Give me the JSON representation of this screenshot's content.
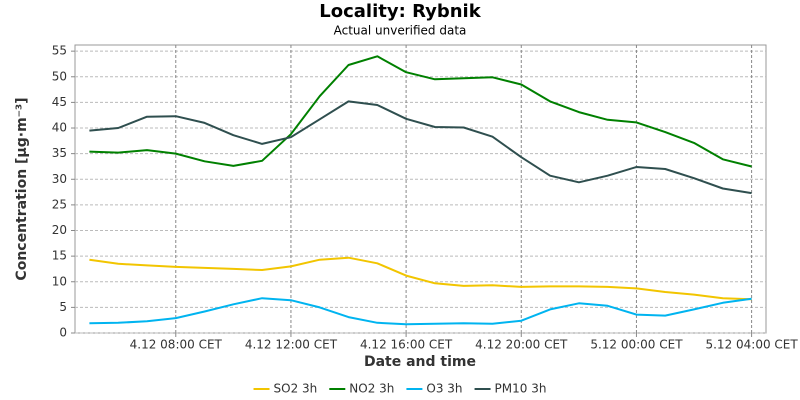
{
  "chart_data": {
    "type": "line",
    "title": "Locality: Rybnik",
    "subtitle": "Actual unverified data",
    "x_label": "Date and time",
    "y_label": "Concentration [µg·m⁻³]",
    "categories": [
      null,
      null,
      null,
      "4.12 08:00 CET",
      null,
      null,
      null,
      "4.12 12:00 CET",
      null,
      null,
      null,
      "4.12 16:00 CET",
      null,
      null,
      null,
      "4.12 20:00 CET",
      null,
      null,
      null,
      "5.12 00:00 CET",
      null,
      null,
      null,
      "5.12 04:00 CET"
    ],
    "series": [
      {
        "name": "SO2 3h",
        "color": "#f2c500",
        "values": [
          14.3,
          13.5,
          13.2,
          12.9,
          12.7,
          12.5,
          12.3,
          13.0,
          14.3,
          14.7,
          13.6,
          11.2,
          9.7,
          9.2,
          9.3,
          9.0,
          9.1,
          9.1,
          9.0,
          8.7,
          8.0,
          7.5,
          6.8,
          6.6
        ]
      },
      {
        "name": "NO2 3h",
        "color": "#008000",
        "values": [
          35.4,
          35.2,
          35.7,
          35.0,
          33.5,
          32.6,
          33.6,
          38.8,
          46.2,
          52.3,
          54.0,
          50.9,
          49.5,
          49.7,
          49.9,
          48.5,
          45.2,
          43.1,
          41.6,
          41.1,
          39.2,
          37.1,
          33.9,
          32.5
        ]
      },
      {
        "name": "O3 3h",
        "color": "#00b4f0",
        "values": [
          1.9,
          2.0,
          2.3,
          2.9,
          4.2,
          5.6,
          6.8,
          6.4,
          5.0,
          3.1,
          2.0,
          1.7,
          1.8,
          1.9,
          1.8,
          2.4,
          4.6,
          5.8,
          5.3,
          3.6,
          3.4,
          4.6,
          5.9,
          6.7
        ]
      },
      {
        "name": "PM10 3h",
        "color": "#2f4f4f",
        "values": [
          39.5,
          40.0,
          42.2,
          42.3,
          41.0,
          38.6,
          36.9,
          38.2,
          41.7,
          45.2,
          44.5,
          41.8,
          40.2,
          40.1,
          38.3,
          34.3,
          30.7,
          29.4,
          30.7,
          32.4,
          32.0,
          30.2,
          28.2,
          27.3
        ]
      }
    ],
    "ylim": [
      0,
      56.2
    ],
    "yticks": [
      0,
      5,
      10,
      15,
      20,
      25,
      30,
      35,
      40,
      45,
      50,
      55
    ],
    "grid": true,
    "legend": "bottom"
  }
}
